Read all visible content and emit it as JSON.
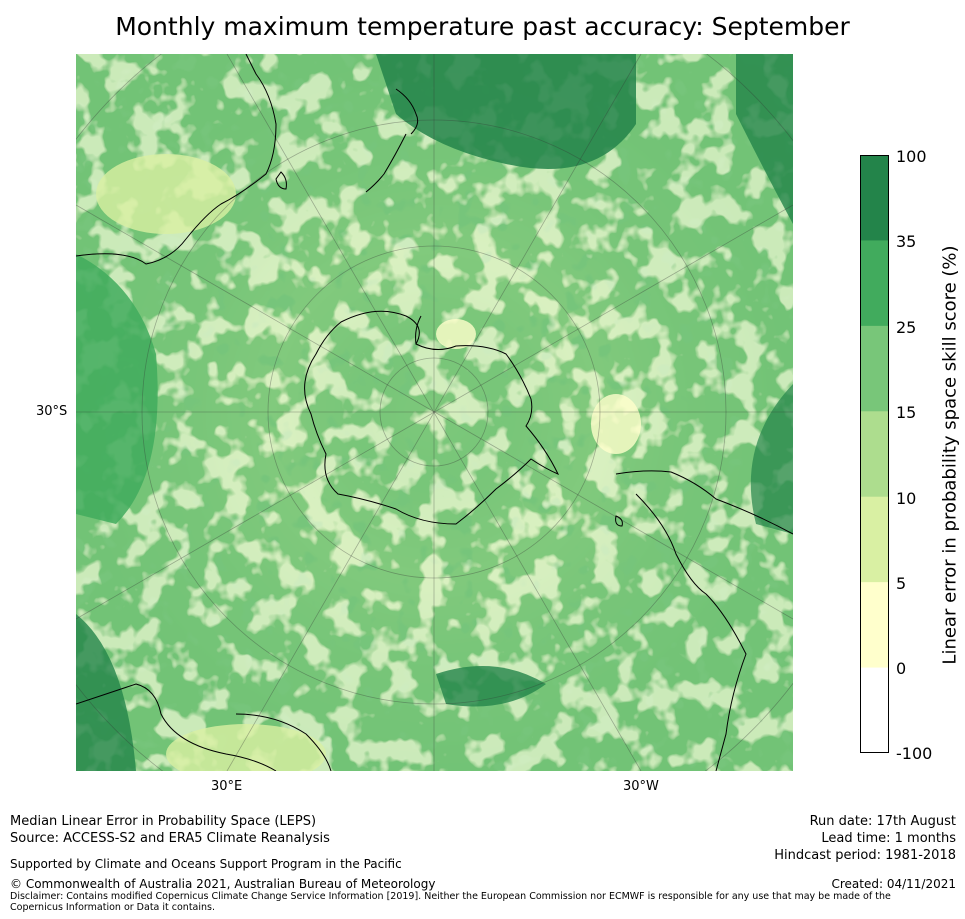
{
  "title": "Monthly maximum temperature past accuracy: September",
  "map": {
    "projection": "south polar stereographic",
    "lat_tick": "30°S",
    "lon_ticks": [
      "30°E",
      "30°W"
    ]
  },
  "colorbar": {
    "label": "Linear error in probability space skill score (%)",
    "ticks": [
      "100",
      "35",
      "25",
      "15",
      "10",
      "5",
      "0",
      "-100"
    ],
    "bins": [
      {
        "range": "35–100",
        "color": "#23844a"
      },
      {
        "range": "25–35",
        "color": "#41ab5d"
      },
      {
        "range": "15–25",
        "color": "#78c679"
      },
      {
        "range": "10–15",
        "color": "#addd8e"
      },
      {
        "range": "5–10",
        "color": "#d9f0a3"
      },
      {
        "range": "0–5",
        "color": "#ffffcc"
      },
      {
        "range": "-100–0",
        "color": "#ffffff"
      }
    ]
  },
  "footer": {
    "method": "Median Linear Error in Probability Space (LEPS)",
    "source": "Source: ACCESS-S2 and ERA5 Climate Reanalysis",
    "support": "Supported by Climate and Oceans Support Program in the Pacific",
    "copyright": "© Commonwealth of Australia 2021, Australian Bureau of Meteorology",
    "disclaimer": "Disclaimer: Contains modified Copernicus Climate Change Service Information [2019]. Neither the European Commission nor ECMWF is responsible for any use that may be made of the Copernicus Information or Data it contains.",
    "run_date": "Run date: 17th August",
    "lead_time": "Lead time: 1 months",
    "hindcast": "Hindcast period: 1981-2018",
    "created": "Created: 04/11/2021"
  }
}
